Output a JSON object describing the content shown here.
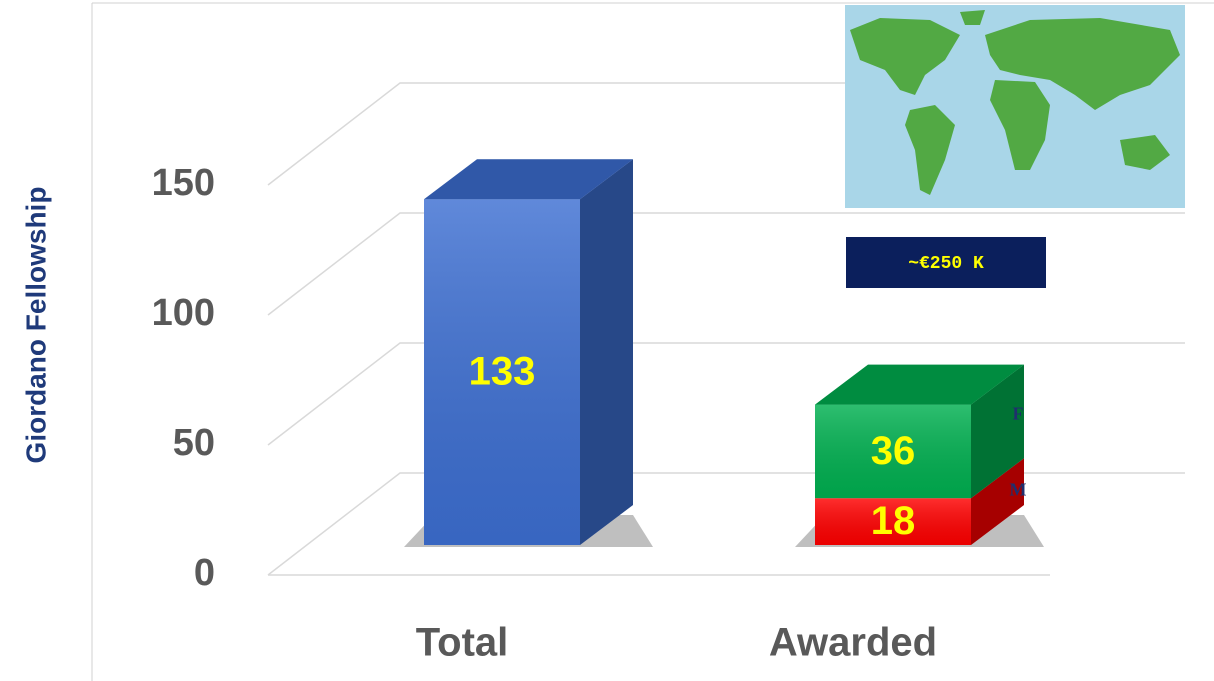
{
  "chart_data": {
    "type": "bar3d",
    "ylabel": "Giordano Fellowship",
    "categories": [
      "Total",
      "Awarded"
    ],
    "series": [
      {
        "color": "#3d6fd2",
        "values": [
          133,
          null
        ]
      },
      {
        "name": "M",
        "color": "#ff0000",
        "values": [
          null,
          18
        ]
      },
      {
        "name": "F",
        "color": "#00b050",
        "values": [
          null,
          36
        ]
      }
    ],
    "stacked": true,
    "ylim": [
      0,
      150
    ],
    "yticks": [
      0,
      50,
      100,
      150
    ],
    "grid": true,
    "annotation": "~€250 K"
  }
}
